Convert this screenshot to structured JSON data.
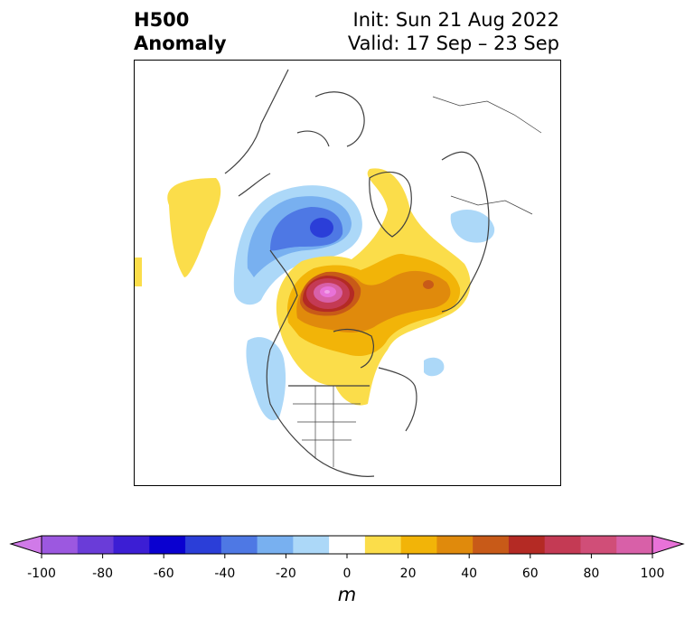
{
  "title": {
    "left_line1": "H500",
    "left_line2": "Anomaly",
    "right_line1": "Init: Sun 21 Aug 2022",
    "right_line2": "Valid: 17 Sep – 23 Sep"
  },
  "colorbar": {
    "unit": "m",
    "min": -100,
    "max": 100,
    "step": 10,
    "ticks": [
      "-100",
      "-80",
      "-60",
      "-40",
      "-20",
      "0",
      "20",
      "40",
      "60",
      "80",
      "100"
    ],
    "colors": [
      "#d07ae8",
      "#9c58e0",
      "#6a3cd8",
      "#3c1ed4",
      "#0a00d0",
      "#2b3ed8",
      "#4e78e4",
      "#78b0f0",
      "#acd8f8",
      "#ffffff",
      "#fbdd4a",
      "#f2b408",
      "#e08a0c",
      "#c85a18",
      "#b42a24",
      "#c43a54",
      "#d04e78",
      "#d860a8",
      "#e872d8"
    ],
    "extend": "both"
  },
  "map": {
    "projection": "north-polar-stereographic",
    "region": "North America / Arctic",
    "features": [
      "coastlines",
      "country-borders",
      "state-province-borders"
    ]
  }
}
